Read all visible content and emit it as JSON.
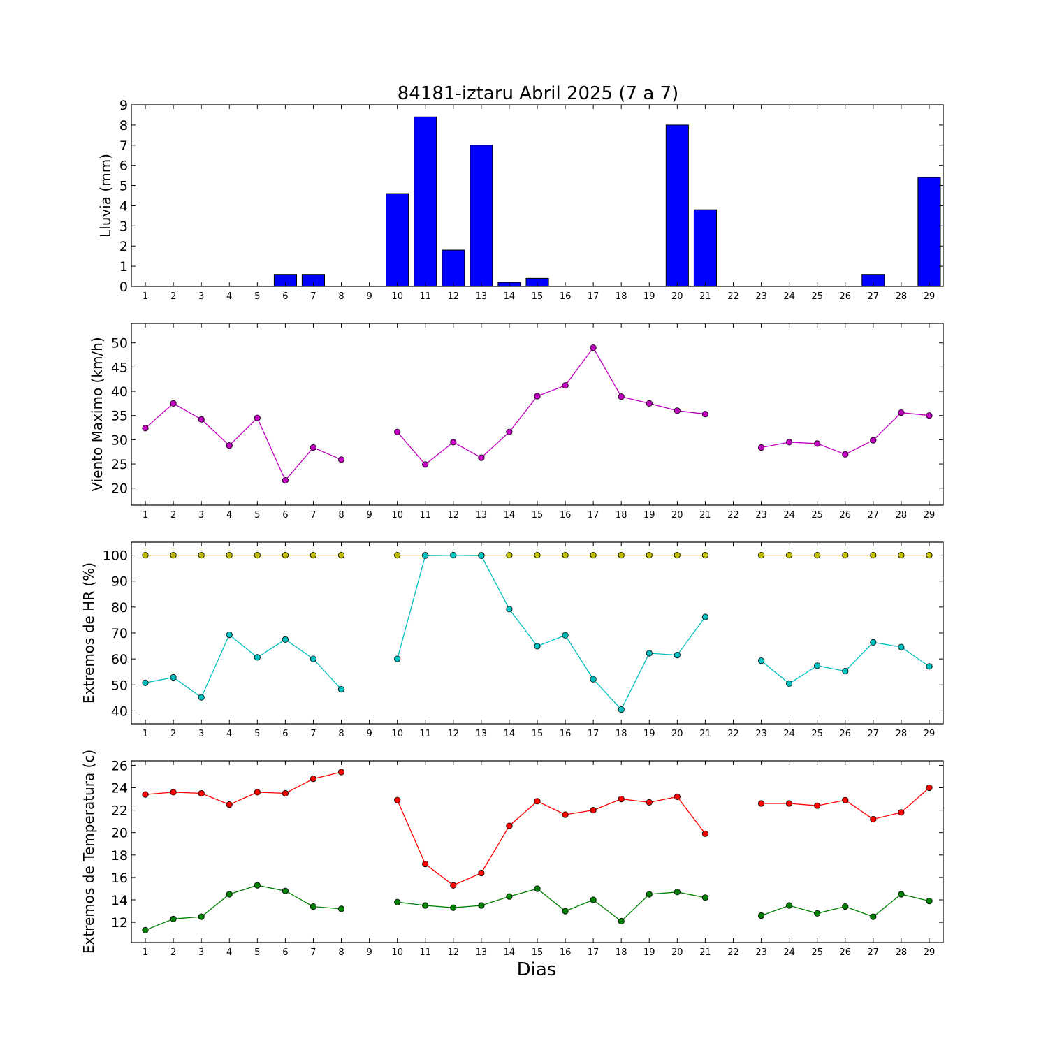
{
  "figure": {
    "title": "84181-iztaru Abril 2025  (7 a 7)",
    "xlabel": "Dias"
  },
  "chart_data": [
    {
      "type": "bar",
      "ylabel": "Lluvia (mm)",
      "ylim": [
        0,
        9
      ],
      "yticks": [
        0,
        1,
        2,
        3,
        4,
        5,
        6,
        7,
        8,
        9
      ],
      "xlim": [
        0.5,
        29.5
      ],
      "categories": [
        1,
        2,
        3,
        4,
        5,
        6,
        7,
        8,
        9,
        10,
        11,
        12,
        13,
        14,
        15,
        16,
        17,
        18,
        19,
        20,
        21,
        22,
        23,
        24,
        25,
        26,
        27,
        28,
        29
      ],
      "series": [
        {
          "color": "#0000ff",
          "values": [
            0,
            0,
            0,
            0,
            0,
            0.6,
            0.6,
            0,
            0,
            4.6,
            8.4,
            1.8,
            7.0,
            0.2,
            0.4,
            0,
            0,
            0,
            0,
            8.0,
            3.8,
            0,
            0,
            0,
            0,
            0,
            0.6,
            0,
            5.4
          ]
        }
      ]
    },
    {
      "type": "line",
      "ylabel": "Viento Maximo (km/h)",
      "ylim": [
        16.5,
        54
      ],
      "yticks": [
        20,
        25,
        30,
        35,
        40,
        45,
        50
      ],
      "xlim": [
        0.5,
        29.5
      ],
      "x": [
        1,
        2,
        3,
        4,
        5,
        6,
        7,
        8,
        9,
        10,
        11,
        12,
        13,
        14,
        15,
        16,
        17,
        18,
        19,
        20,
        21,
        22,
        23,
        24,
        25,
        26,
        27,
        28,
        29
      ],
      "series": [
        {
          "color": "#bf00bf",
          "values": [
            32.4,
            37.5,
            34.2,
            28.8,
            34.5,
            21.6,
            28.4,
            25.9,
            null,
            31.6,
            24.9,
            29.5,
            26.3,
            31.6,
            39.0,
            41.2,
            49.0,
            38.9,
            37.5,
            36.0,
            35.3,
            null,
            28.4,
            29.5,
            29.2,
            27.0,
            29.9,
            35.6,
            35.0
          ]
        }
      ]
    },
    {
      "type": "line",
      "ylabel": "Extremos de HR (%)",
      "ylim": [
        35,
        105
      ],
      "yticks": [
        40,
        50,
        60,
        70,
        80,
        90,
        100
      ],
      "xlim": [
        0.5,
        29.5
      ],
      "x": [
        1,
        2,
        3,
        4,
        5,
        6,
        7,
        8,
        9,
        10,
        11,
        12,
        13,
        14,
        15,
        16,
        17,
        18,
        19,
        20,
        21,
        22,
        23,
        24,
        25,
        26,
        27,
        28,
        29
      ],
      "series": [
        {
          "color": "#bfbf00",
          "values": [
            100,
            100,
            100,
            100,
            100,
            100,
            100,
            100,
            null,
            100,
            100,
            100,
            100,
            100,
            100,
            100,
            100,
            100,
            100,
            100,
            100,
            null,
            100,
            100,
            100,
            100,
            100,
            100,
            100
          ]
        },
        {
          "color": "#00bfbf",
          "values": [
            50.8,
            52.9,
            45.2,
            69.3,
            60.6,
            67.5,
            60.0,
            48.3,
            null,
            60.0,
            99.8,
            100,
            99.8,
            79.2,
            64.9,
            69.1,
            52.2,
            40.5,
            62.2,
            61.5,
            76.2,
            null,
            59.3,
            50.5,
            57.4,
            55.3,
            66.4,
            64.6,
            57.1
          ]
        }
      ]
    },
    {
      "type": "line",
      "ylabel": "Extremos de Temperatura (c)",
      "ylim": [
        10.2,
        26.4
      ],
      "yticks": [
        12,
        14,
        16,
        18,
        20,
        22,
        24,
        26
      ],
      "xlim": [
        0.5,
        29.5
      ],
      "x": [
        1,
        2,
        3,
        4,
        5,
        6,
        7,
        8,
        9,
        10,
        11,
        12,
        13,
        14,
        15,
        16,
        17,
        18,
        19,
        20,
        21,
        22,
        23,
        24,
        25,
        26,
        27,
        28,
        29
      ],
      "series": [
        {
          "color": "#ff0000",
          "values": [
            23.4,
            23.6,
            23.5,
            22.5,
            23.6,
            23.5,
            24.8,
            25.4,
            null,
            22.9,
            17.2,
            15.3,
            16.4,
            20.6,
            22.8,
            21.6,
            22.0,
            23.0,
            22.7,
            23.2,
            19.9,
            null,
            22.6,
            22.6,
            22.4,
            22.9,
            21.2,
            21.8,
            24.0
          ]
        },
        {
          "color": "#008000",
          "values": [
            11.3,
            12.3,
            12.5,
            14.5,
            15.3,
            14.8,
            13.4,
            13.2,
            null,
            13.8,
            13.5,
            13.3,
            13.5,
            14.3,
            15.0,
            13.0,
            14.0,
            12.1,
            14.5,
            14.7,
            14.2,
            null,
            12.6,
            13.5,
            12.8,
            13.4,
            12.5,
            14.5,
            13.9
          ]
        }
      ]
    }
  ]
}
